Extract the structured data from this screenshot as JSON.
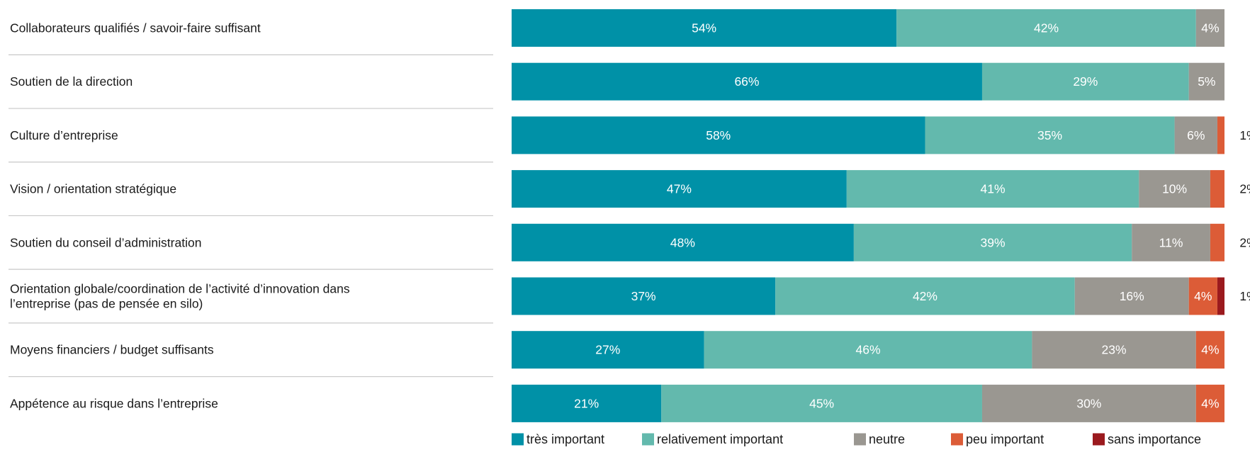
{
  "chart_data": {
    "type": "bar",
    "orientation": "horizontal",
    "stacked": true,
    "title": "",
    "xlabel": "",
    "ylabel": "",
    "xlim": [
      0,
      100
    ],
    "grid": false,
    "legend_position": "bottom",
    "categories": [
      "Collaborateurs qualifiés / savoir-faire suffisant",
      "Soutien de la direction",
      "Culture d’entreprise",
      "Vision / orientation stratégique",
      "Soutien du conseil d’administration",
      "Orientation globale/coordination de l’activité d’innovation dans l’entreprise (pas de pensée en silo)",
      "Moyens financiers / budget suffisants",
      "Appétence au risque dans l’entreprise"
    ],
    "series": [
      {
        "name": "très important",
        "color": "#0091a7",
        "label_color": "#ffffff",
        "values": [
          54,
          66,
          58,
          47,
          48,
          37,
          27,
          21
        ]
      },
      {
        "name": "relativement important",
        "color": "#63b9ad",
        "label_color": "#ffffff",
        "values": [
          42,
          29,
          35,
          41,
          39,
          42,
          46,
          45
        ]
      },
      {
        "name": "neutre",
        "color": "#9a9791",
        "label_color": "#ffffff",
        "values": [
          4,
          5,
          6,
          10,
          11,
          16,
          23,
          30
        ]
      },
      {
        "name": "peu important",
        "color": "#dc5c37",
        "label_color": "#ffffff",
        "values": [
          0,
          0,
          1,
          2,
          2,
          4,
          4,
          4
        ]
      },
      {
        "name": "sans importance",
        "color": "#9b1a1e",
        "label_color": "#ffffff",
        "values": [
          0,
          0,
          0,
          0,
          0,
          1,
          0,
          0
        ]
      }
    ],
    "value_suffix": "%"
  }
}
